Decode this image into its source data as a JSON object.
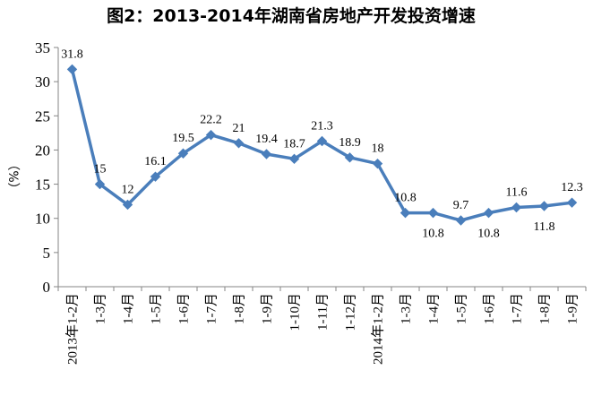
{
  "chart_data": {
    "type": "line",
    "title": "图2：2013-2014年湖南省房地产开发投资增速",
    "ylabel": "（%）",
    "xlabel": "",
    "ylim": [
      0,
      35
    ],
    "yticks": [
      0,
      5,
      10,
      15,
      20,
      25,
      30,
      35
    ],
    "grid": false,
    "legend": "none",
    "categories": [
      "2013年1-2月",
      "1-3月",
      "1-4月",
      "1-5月",
      "1-6月",
      "1-7月",
      "1-8月",
      "1-9月",
      "1-10月",
      "1-11月",
      "1-12月",
      "2014年1-2月",
      "1-3月",
      "1-4月",
      "1-5月",
      "1-6月",
      "1-7月",
      "1-8月",
      "1-9月"
    ],
    "series": [
      {
        "values": [
          31.8,
          15,
          12,
          16.1,
          19.5,
          22.2,
          21,
          19.4,
          18.7,
          21.3,
          18.9,
          18,
          10.8,
          10.8,
          9.7,
          10.8,
          11.6,
          11.8,
          12.3
        ],
        "data_labels": [
          "31.8",
          "15",
          "12",
          "16.1",
          "19.5",
          "22.2",
          "21",
          "19.4",
          "18.7",
          "21.3",
          "18.9",
          "18",
          "10.8",
          "10.8",
          "9.7",
          "10.8",
          "11.6",
          "11.8",
          "12.3"
        ],
        "label_positions": [
          "above",
          "above",
          "above",
          "above",
          "above",
          "above",
          "above",
          "above",
          "above",
          "above",
          "above",
          "above",
          "above",
          "below",
          "above",
          "below",
          "above",
          "below",
          "above"
        ]
      }
    ],
    "colors": {
      "line": "#4a7ebb",
      "marker": "#4a7ebb",
      "axis": "#868686"
    }
  }
}
